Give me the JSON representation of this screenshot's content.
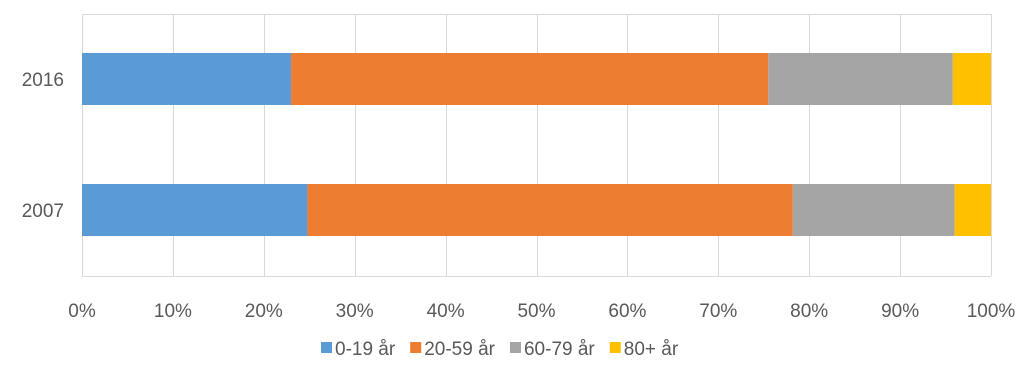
{
  "chart_data": {
    "type": "bar",
    "orientation": "horizontal",
    "stacked": "percent",
    "categories": [
      "2016",
      "2007"
    ],
    "series": [
      {
        "name": "0-19 år",
        "color": "#5B9BD5",
        "values": [
          23.0,
          24.8
        ]
      },
      {
        "name": "20-59 år",
        "color": "#ED7D31",
        "values": [
          52.5,
          53.4
        ]
      },
      {
        "name": "60-79 år",
        "color": "#A5A5A5",
        "values": [
          20.3,
          17.8
        ]
      },
      {
        "name": "80+ år",
        "color": "#FFC000",
        "values": [
          4.2,
          4.0
        ]
      }
    ],
    "xlim": [
      0,
      100
    ],
    "x_ticks": [
      "0%",
      "10%",
      "20%",
      "30%",
      "40%",
      "50%",
      "60%",
      "70%",
      "80%",
      "90%",
      "100%"
    ],
    "grid": true,
    "legend": "bottom",
    "title": "",
    "xlabel": "",
    "ylabel": ""
  }
}
